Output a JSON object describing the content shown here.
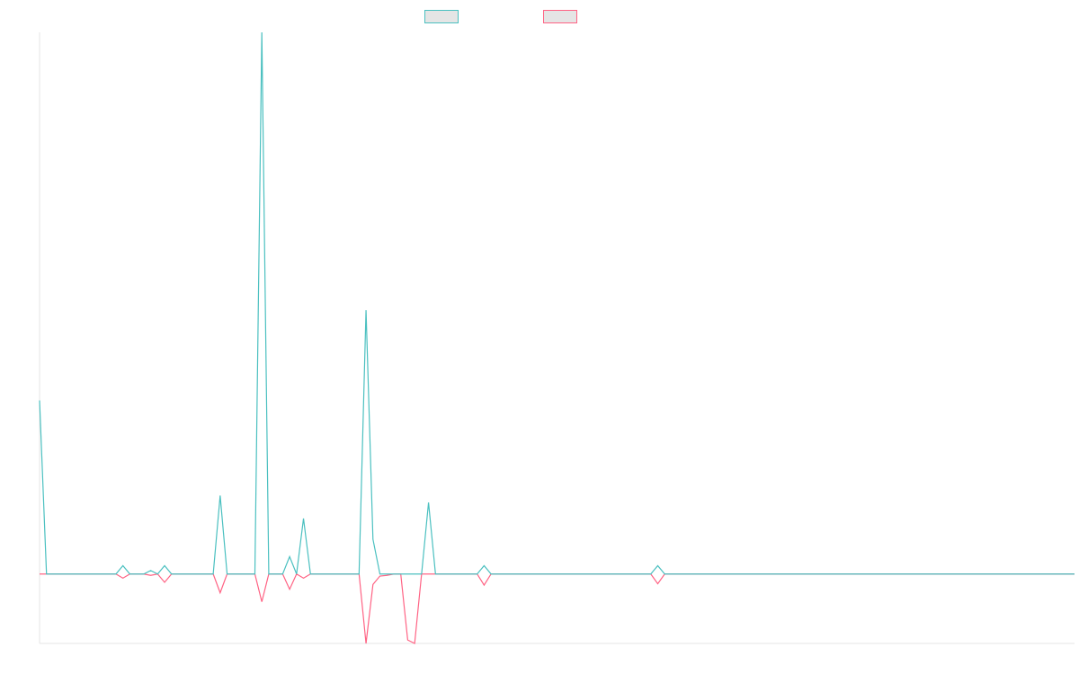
{
  "chart_data": {
    "type": "line",
    "title": "",
    "xlabel": "",
    "ylabel": "",
    "x_count": 150,
    "ylim": [
      -100,
      780
    ],
    "grid": false,
    "legend_position": "top",
    "series": [
      {
        "color": "#4BC0C0",
        "values": [
          250,
          0,
          0,
          0,
          0,
          0,
          0,
          0,
          0,
          0,
          0,
          0,
          12,
          0,
          0,
          0,
          5,
          0,
          12,
          0,
          0,
          0,
          0,
          0,
          0,
          0,
          113,
          0,
          0,
          0,
          0,
          0,
          780,
          0,
          0,
          0,
          25,
          0,
          80,
          0,
          0,
          0,
          0,
          0,
          0,
          0,
          0,
          380,
          50,
          0,
          0,
          0,
          0,
          0,
          0,
          0,
          103,
          0,
          0,
          0,
          0,
          0,
          0,
          0,
          12,
          0,
          0,
          0,
          0,
          0,
          0,
          0,
          0,
          0,
          0,
          0,
          0,
          0,
          0,
          0,
          0,
          0,
          0,
          0,
          0,
          0,
          0,
          0,
          0,
          12,
          0,
          0,
          0,
          0,
          0,
          0,
          0,
          0,
          0,
          0,
          0,
          0,
          0,
          0,
          0,
          0,
          0,
          0,
          0,
          0,
          0,
          0,
          0,
          0,
          0,
          0,
          0,
          0,
          0,
          0,
          0,
          0,
          0,
          0,
          0,
          0,
          0,
          0,
          0,
          0,
          0,
          0,
          0,
          0,
          0,
          0,
          0,
          0,
          0,
          0,
          0,
          0,
          0,
          0,
          0,
          0,
          0,
          0,
          0,
          0
        ]
      },
      {
        "color": "#FF6384",
        "values": [
          0,
          0,
          0,
          0,
          0,
          0,
          0,
          0,
          0,
          0,
          0,
          0,
          -6,
          0,
          0,
          0,
          -2,
          0,
          -12,
          0,
          0,
          0,
          0,
          0,
          0,
          0,
          -27,
          0,
          0,
          0,
          0,
          0,
          -40,
          0,
          0,
          0,
          -22,
          0,
          -6,
          0,
          0,
          0,
          0,
          0,
          0,
          0,
          0,
          -100,
          -15,
          -3,
          -2,
          0,
          0,
          -95,
          -100,
          0,
          0,
          0,
          0,
          0,
          0,
          0,
          0,
          0,
          -16,
          0,
          0,
          0,
          0,
          0,
          0,
          0,
          0,
          0,
          0,
          0,
          0,
          0,
          0,
          0,
          0,
          0,
          0,
          0,
          0,
          0,
          0,
          0,
          0,
          -14,
          0,
          0,
          0,
          0,
          0,
          0,
          0,
          0,
          0,
          0,
          0,
          0,
          0,
          0,
          0,
          0,
          0,
          0,
          0,
          0,
          0,
          0,
          0,
          0,
          0,
          0,
          0,
          0,
          0,
          0,
          0,
          0,
          0,
          0,
          0,
          0,
          0,
          0,
          0,
          0,
          0,
          0,
          0,
          0,
          0,
          0,
          0,
          0,
          0,
          0,
          0,
          0,
          0,
          0,
          0,
          0,
          0,
          0,
          0,
          0
        ]
      }
    ]
  }
}
